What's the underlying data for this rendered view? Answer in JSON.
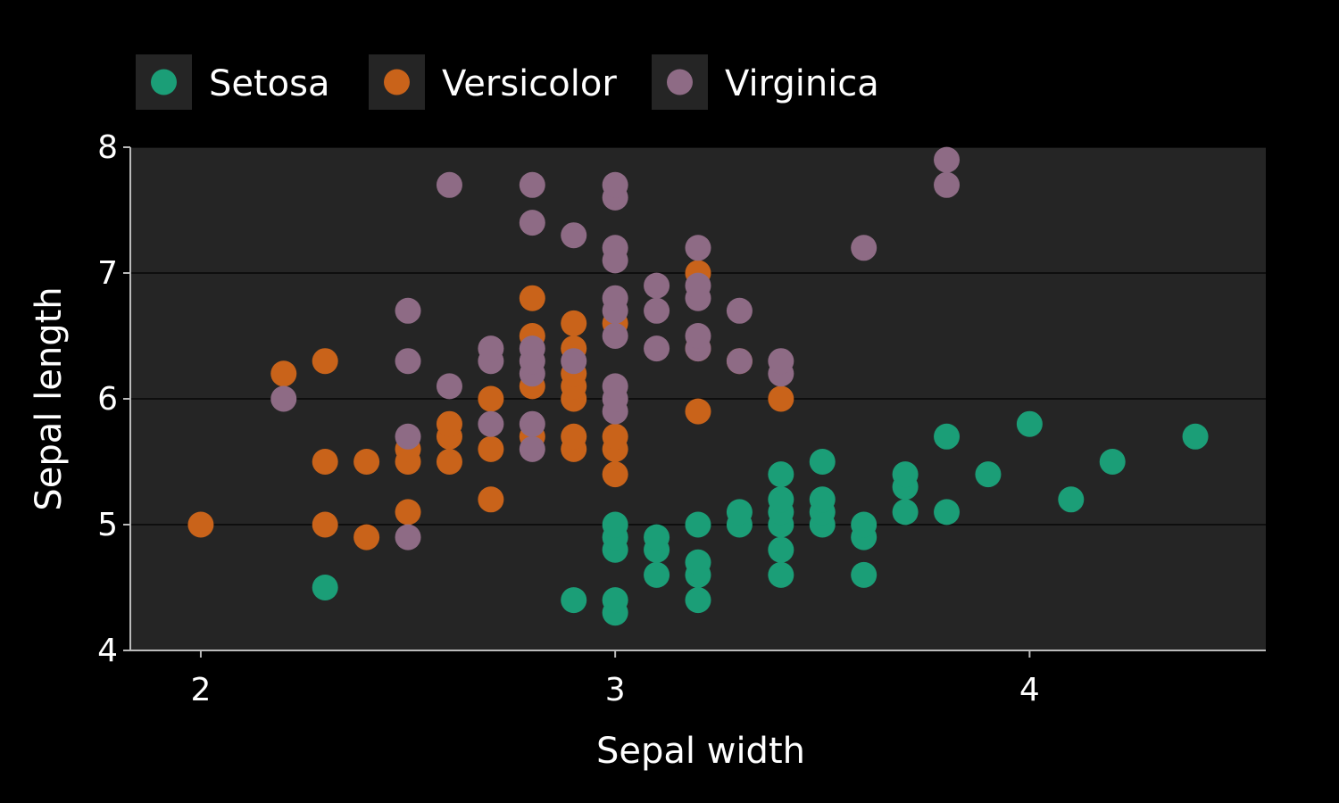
{
  "chart_data": {
    "type": "scatter",
    "xlabel": "Sepal width",
    "ylabel": "Sepal length",
    "xlim": [
      1.83,
      4.57
    ],
    "ylim": [
      4,
      8
    ],
    "x_ticks": [
      2,
      3,
      4
    ],
    "y_ticks": [
      4,
      5,
      6,
      7,
      8
    ],
    "grid": "horizontal",
    "legend_position": "top",
    "background": "#000000",
    "panel_color": "#252525",
    "series": [
      {
        "name": "Setosa",
        "color": "#1b9e77",
        "points": [
          [
            2.3,
            4.5
          ],
          [
            2.9,
            4.4
          ],
          [
            3.0,
            4.3
          ],
          [
            3.0,
            4.4
          ],
          [
            3.0,
            4.8
          ],
          [
            3.0,
            4.9
          ],
          [
            3.0,
            5.0
          ],
          [
            3.1,
            4.6
          ],
          [
            3.1,
            4.8
          ],
          [
            3.1,
            4.9
          ],
          [
            3.2,
            4.4
          ],
          [
            3.2,
            4.6
          ],
          [
            3.2,
            4.7
          ],
          [
            3.2,
            5.0
          ],
          [
            3.3,
            5.0
          ],
          [
            3.3,
            5.1
          ],
          [
            3.4,
            4.6
          ],
          [
            3.4,
            4.8
          ],
          [
            3.4,
            5.0
          ],
          [
            3.4,
            5.1
          ],
          [
            3.4,
            5.2
          ],
          [
            3.4,
            5.4
          ],
          [
            3.5,
            5.0
          ],
          [
            3.5,
            5.1
          ],
          [
            3.5,
            5.2
          ],
          [
            3.5,
            5.5
          ],
          [
            3.6,
            4.6
          ],
          [
            3.6,
            4.9
          ],
          [
            3.6,
            5.0
          ],
          [
            3.7,
            5.1
          ],
          [
            3.7,
            5.3
          ],
          [
            3.7,
            5.4
          ],
          [
            3.8,
            5.1
          ],
          [
            3.8,
            5.7
          ],
          [
            3.9,
            5.4
          ],
          [
            4.0,
            5.8
          ],
          [
            4.1,
            5.2
          ],
          [
            4.2,
            5.5
          ],
          [
            4.4,
            5.7
          ]
        ]
      },
      {
        "name": "Versicolor",
        "color": "#c9631a",
        "points": [
          [
            2.0,
            5.0
          ],
          [
            2.2,
            6.2
          ],
          [
            2.3,
            5.0
          ],
          [
            2.3,
            5.5
          ],
          [
            2.3,
            6.3
          ],
          [
            2.4,
            4.9
          ],
          [
            2.4,
            5.5
          ],
          [
            2.5,
            5.1
          ],
          [
            2.5,
            5.5
          ],
          [
            2.5,
            5.6
          ],
          [
            2.6,
            5.5
          ],
          [
            2.6,
            5.7
          ],
          [
            2.6,
            5.8
          ],
          [
            2.7,
            5.2
          ],
          [
            2.7,
            5.6
          ],
          [
            2.7,
            6.0
          ],
          [
            2.8,
            5.7
          ],
          [
            2.8,
            6.1
          ],
          [
            2.8,
            6.5
          ],
          [
            2.8,
            6.8
          ],
          [
            2.9,
            5.6
          ],
          [
            2.9,
            5.7
          ],
          [
            2.9,
            6.0
          ],
          [
            2.9,
            6.1
          ],
          [
            2.9,
            6.2
          ],
          [
            2.9,
            6.4
          ],
          [
            2.9,
            6.6
          ],
          [
            3.0,
            5.4
          ],
          [
            3.0,
            5.6
          ],
          [
            3.0,
            5.7
          ],
          [
            3.0,
            6.6
          ],
          [
            3.2,
            5.9
          ],
          [
            3.2,
            6.4
          ],
          [
            3.2,
            7.0
          ],
          [
            3.3,
            6.3
          ],
          [
            3.4,
            6.0
          ]
        ]
      },
      {
        "name": "Virginica",
        "color": "#8e6b85",
        "points": [
          [
            2.2,
            6.0
          ],
          [
            2.5,
            4.9
          ],
          [
            2.5,
            5.7
          ],
          [
            2.5,
            6.3
          ],
          [
            2.5,
            6.7
          ],
          [
            2.6,
            6.1
          ],
          [
            2.6,
            7.7
          ],
          [
            2.7,
            5.8
          ],
          [
            2.7,
            6.3
          ],
          [
            2.7,
            6.4
          ],
          [
            2.8,
            5.6
          ],
          [
            2.8,
            5.8
          ],
          [
            2.8,
            6.2
          ],
          [
            2.8,
            6.3
          ],
          [
            2.8,
            6.4
          ],
          [
            2.8,
            7.4
          ],
          [
            2.8,
            7.7
          ],
          [
            2.9,
            6.3
          ],
          [
            2.9,
            7.3
          ],
          [
            3.0,
            5.9
          ],
          [
            3.0,
            6.0
          ],
          [
            3.0,
            6.1
          ],
          [
            3.0,
            6.5
          ],
          [
            3.0,
            6.7
          ],
          [
            3.0,
            6.8
          ],
          [
            3.0,
            7.1
          ],
          [
            3.0,
            7.2
          ],
          [
            3.0,
            7.6
          ],
          [
            3.0,
            7.7
          ],
          [
            3.1,
            6.4
          ],
          [
            3.1,
            6.7
          ],
          [
            3.1,
            6.9
          ],
          [
            3.2,
            6.4
          ],
          [
            3.2,
            6.5
          ],
          [
            3.2,
            6.8
          ],
          [
            3.2,
            6.9
          ],
          [
            3.2,
            7.2
          ],
          [
            3.3,
            6.3
          ],
          [
            3.3,
            6.7
          ],
          [
            3.4,
            6.2
          ],
          [
            3.4,
            6.3
          ],
          [
            3.6,
            7.2
          ],
          [
            3.8,
            7.7
          ],
          [
            3.8,
            7.9
          ]
        ]
      }
    ]
  }
}
